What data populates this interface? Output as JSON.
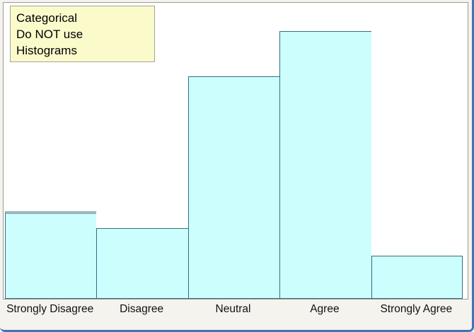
{
  "note": {
    "lines": [
      "Categorical",
      "Do NOT use",
      "Histograms"
    ]
  },
  "chart_data": {
    "type": "bar",
    "subtype": "histogram-style touching bars, no visible axes or tick values",
    "title": "",
    "xlabel": "",
    "ylabel": "",
    "categories": [
      "Strongly Disagree",
      "Disagree",
      "Neutral",
      "Agree",
      "Strongly Agree"
    ],
    "values_pct_of_plot_height": [
      29.6,
      23.9,
      75.2,
      90.5,
      14.6
    ],
    "annotation": "Categorical Do NOT use Histograms",
    "legend": false,
    "grid": false,
    "bar_gap": 0,
    "bar_fill_color": "#ccfefe",
    "bar_border_color": "#336f7d",
    "first_bar_top_highlight_color": "#9cb6ba",
    "plot_background": "#ffffff",
    "page_background": "#f5f3ee",
    "frame_accent_color": "#3d74b6",
    "note_fill_color": "#fbfacb"
  }
}
